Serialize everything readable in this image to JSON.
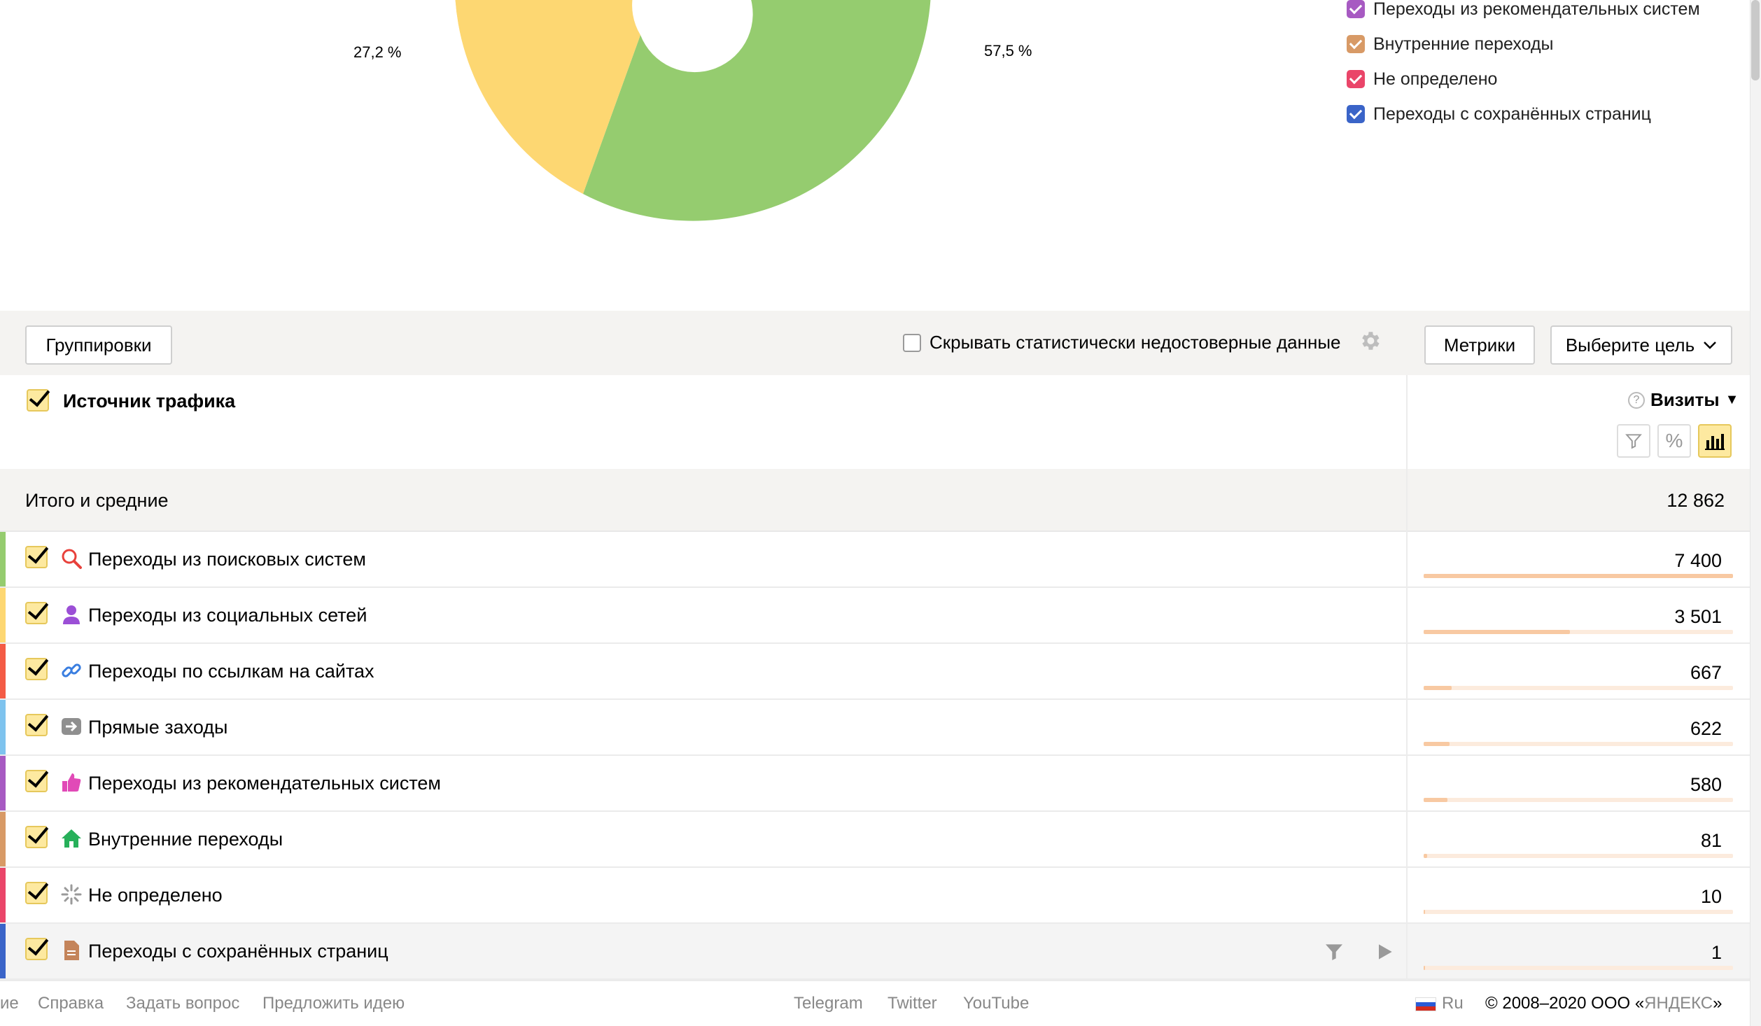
{
  "chart": {
    "labels": {
      "left_pct": "27,2 %",
      "right_pct": "57,5 %"
    },
    "legend": [
      {
        "label": "Переходы из рекомендательных систем",
        "color": "#a75ac2"
      },
      {
        "label": "Внутренние переходы",
        "color": "#d89a66"
      },
      {
        "label": "Не определено",
        "color": "#ea4569"
      },
      {
        "label": "Переходы с сохранённых страниц",
        "color": "#3a64c8"
      }
    ]
  },
  "toolbar": {
    "groupings_label": "Группировки",
    "hide_stat_label": "Скрывать статистически недостоверные данные",
    "metrics_label": "Метрики",
    "goal_label": "Выберите цель"
  },
  "table": {
    "dimension_header": "Источник трафика",
    "metric_header": "Визиты",
    "metric_help": "?",
    "totals_label": "Итого и средние",
    "totals_value": "12 862",
    "rows": [
      {
        "label": "Переходы из поисковых систем",
        "value": "7 400",
        "share": 1.0,
        "color": "#95cc6f",
        "icon": "search-icon"
      },
      {
        "label": "Переходы из социальных сетей",
        "value": "3 501",
        "share": 0.473,
        "color": "#fdd772",
        "icon": "social-icon"
      },
      {
        "label": "Переходы по ссылкам на сайтах",
        "value": "667",
        "share": 0.09,
        "color": "#f45b45",
        "icon": "link-icon"
      },
      {
        "label": "Прямые заходы",
        "value": "622",
        "share": 0.084,
        "color": "#7ec3ee",
        "icon": "arrow-icon"
      },
      {
        "label": "Переходы из рекомендательных систем",
        "value": "580",
        "share": 0.078,
        "color": "#a75ac2",
        "icon": "thumbs-up-icon"
      },
      {
        "label": "Внутренние переходы",
        "value": "81",
        "share": 0.011,
        "color": "#d89a66",
        "icon": "home-icon"
      },
      {
        "label": "Не определено",
        "value": "10",
        "share": 0.0014,
        "color": "#ea4569",
        "icon": "spinner-icon"
      },
      {
        "label": "Переходы с сохранённых страниц",
        "value": "1",
        "share": 0.0001,
        "color": "#3a64c8",
        "icon": "document-icon"
      }
    ]
  },
  "footer": {
    "partial": "ие",
    "help": "Справка",
    "ask": "Задать вопрос",
    "idea": "Предложить идею",
    "telegram": "Telegram",
    "twitter": "Twitter",
    "youtube": "YouTube",
    "lang": "Ru",
    "copyright_prefix": "© 2008–2020 ООО «",
    "copyright_brand": "ЯНДЕКС",
    "copyright_suffix": "»"
  },
  "colors": {
    "green": "#95cc6f",
    "yellow": "#fdd772",
    "accent_yellow": "#fde9a0"
  }
}
